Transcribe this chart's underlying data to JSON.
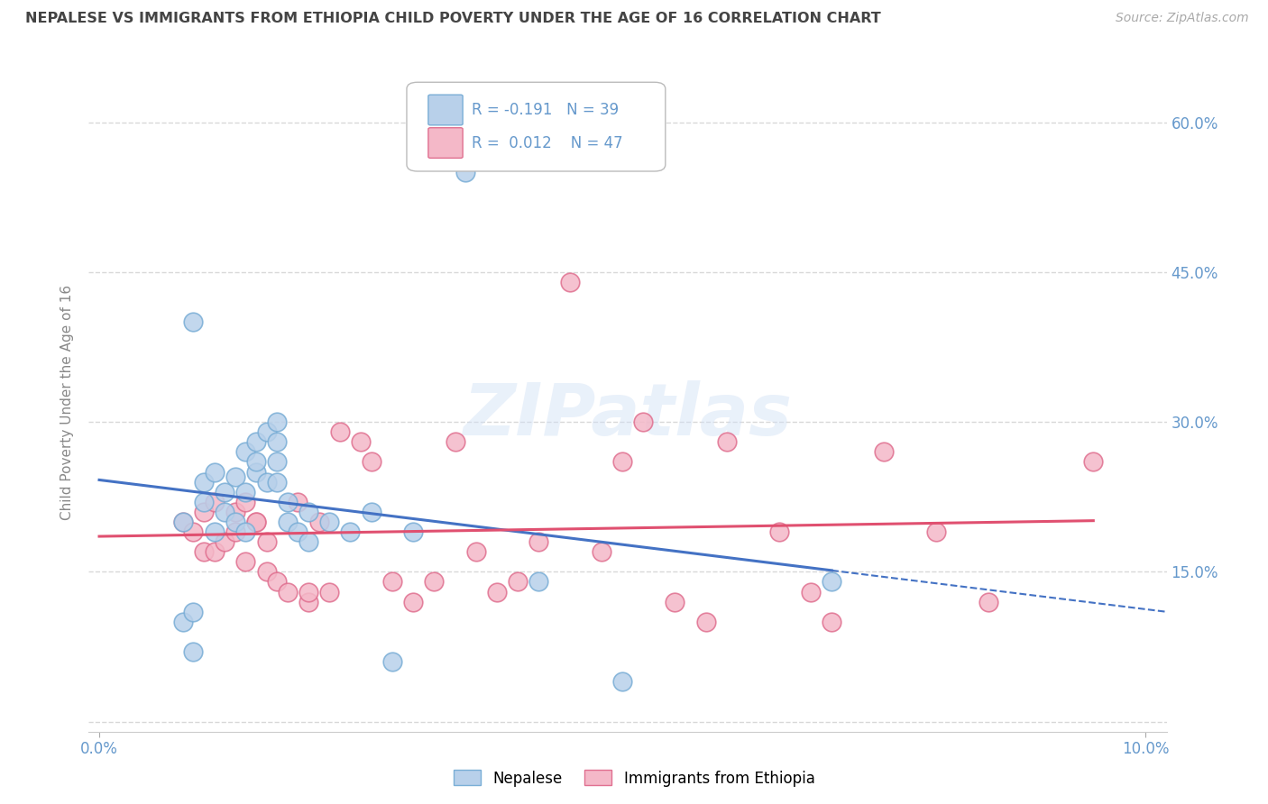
{
  "title": "NEPALESE VS IMMIGRANTS FROM ETHIOPIA CHILD POVERTY UNDER THE AGE OF 16 CORRELATION CHART",
  "source": "Source: ZipAtlas.com",
  "ylabel": "Child Poverty Under the Age of 16",
  "xlim": [
    -0.001,
    0.102
  ],
  "ylim": [
    -0.01,
    0.65
  ],
  "yticks": [
    0.0,
    0.15,
    0.3,
    0.45,
    0.6
  ],
  "xticks": [
    0.0,
    0.1
  ],
  "xtick_labels": [
    "0.0%",
    "10.0%"
  ],
  "ytick_labels_right": [
    "",
    "15.0%",
    "30.0%",
    "45.0%",
    "60.0%"
  ],
  "background_color": "#ffffff",
  "grid_color": "#d8d8d8",
  "nepalese_color": "#b8d0ea",
  "nepalese_edge_color": "#7aaed6",
  "ethiopia_color": "#f4b8c8",
  "ethiopia_edge_color": "#e07090",
  "nepalese_R": -0.191,
  "nepalese_N": 39,
  "ethiopia_R": 0.012,
  "ethiopia_N": 47,
  "nepalese_line_color": "#4472c4",
  "ethiopia_line_color": "#e05070",
  "legend_label_nepalese": "Nepalese",
  "legend_label_ethiopia": "Immigrants from Ethiopia",
  "title_color": "#444444",
  "axis_label_color": "#6699cc",
  "nepalese_x": [
    0.008,
    0.008,
    0.009,
    0.009,
    0.01,
    0.01,
    0.011,
    0.011,
    0.012,
    0.012,
    0.013,
    0.013,
    0.014,
    0.014,
    0.014,
    0.015,
    0.015,
    0.015,
    0.016,
    0.016,
    0.017,
    0.017,
    0.017,
    0.017,
    0.018,
    0.018,
    0.019,
    0.02,
    0.02,
    0.022,
    0.024,
    0.026,
    0.028,
    0.03,
    0.035,
    0.042,
    0.05,
    0.07,
    0.009
  ],
  "nepalese_y": [
    0.2,
    0.1,
    0.11,
    0.07,
    0.24,
    0.22,
    0.19,
    0.25,
    0.23,
    0.21,
    0.2,
    0.245,
    0.23,
    0.19,
    0.27,
    0.25,
    0.28,
    0.26,
    0.29,
    0.24,
    0.3,
    0.28,
    0.26,
    0.24,
    0.22,
    0.2,
    0.19,
    0.21,
    0.18,
    0.2,
    0.19,
    0.21,
    0.06,
    0.19,
    0.55,
    0.14,
    0.04,
    0.14,
    0.4
  ],
  "ethiopia_x": [
    0.008,
    0.009,
    0.01,
    0.01,
    0.011,
    0.011,
    0.012,
    0.013,
    0.013,
    0.014,
    0.014,
    0.015,
    0.015,
    0.016,
    0.016,
    0.017,
    0.018,
    0.019,
    0.02,
    0.02,
    0.021,
    0.022,
    0.023,
    0.025,
    0.026,
    0.028,
    0.03,
    0.032,
    0.034,
    0.036,
    0.038,
    0.04,
    0.042,
    0.045,
    0.048,
    0.05,
    0.052,
    0.055,
    0.058,
    0.06,
    0.065,
    0.068,
    0.07,
    0.075,
    0.08,
    0.085,
    0.095
  ],
  "ethiopia_y": [
    0.2,
    0.19,
    0.17,
    0.21,
    0.17,
    0.22,
    0.18,
    0.21,
    0.19,
    0.16,
    0.22,
    0.2,
    0.2,
    0.15,
    0.18,
    0.14,
    0.13,
    0.22,
    0.12,
    0.13,
    0.2,
    0.13,
    0.29,
    0.28,
    0.26,
    0.14,
    0.12,
    0.14,
    0.28,
    0.17,
    0.13,
    0.14,
    0.18,
    0.44,
    0.17,
    0.26,
    0.3,
    0.12,
    0.1,
    0.28,
    0.19,
    0.13,
    0.1,
    0.27,
    0.19,
    0.12,
    0.26
  ]
}
